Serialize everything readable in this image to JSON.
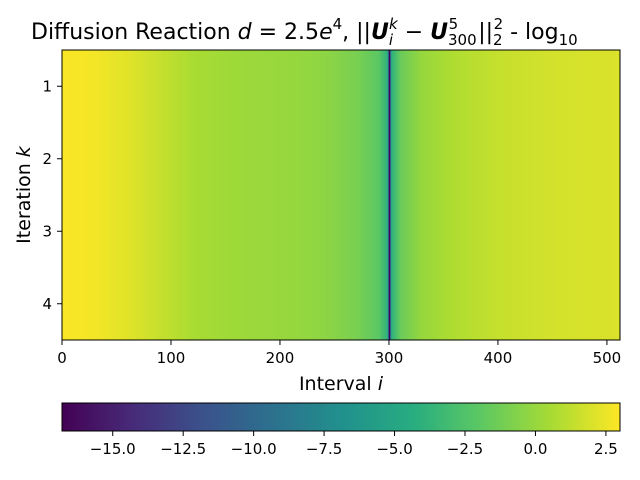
{
  "chart_data": {
    "type": "heatmap",
    "title": "Diffusion Reaction d = 2.5e⁴, ||Uᵢᵏ − U⁵₃₀₀||²₂ - log₁₀",
    "title_parts": {
      "prefix": "Diffusion Reaction ",
      "d_var": "d",
      "equals": " = 2.5",
      "e_var": "e",
      "exp4": "4",
      "comma": ", ||",
      "U1": "U",
      "sub_i": "i",
      "sup_k": "k",
      "minus": " − ",
      "U2": "U",
      "sub_300": "300",
      "sup_5": "5",
      "bars": "||",
      "sub_2": "2",
      "sup_2": "2",
      "suffix": " - log",
      "sub_10": "10"
    },
    "xlabel": "Interval i",
    "xlabel_text": "Interval ",
    "xlabel_var": "i",
    "ylabel": "Iteration k",
    "ylabel_text": "Iteration ",
    "ylabel_var": "k",
    "x_range": [
      0,
      512
    ],
    "y_range": [
      0.5,
      4.5
    ],
    "y_inverted": true,
    "x_ticks": [
      0,
      100,
      200,
      300,
      400,
      500
    ],
    "y_ticks": [
      1,
      2,
      3,
      4
    ],
    "x_tick_labels": [
      "0",
      "100",
      "200",
      "300",
      "400",
      "500"
    ],
    "y_tick_labels": [
      "1",
      "2",
      "3",
      "4"
    ],
    "colormap": "viridis",
    "color_range": [
      -16.8,
      3.0
    ],
    "colorbar_ticks": [
      -15.0,
      -12.5,
      -10.0,
      -7.5,
      -5.0,
      -2.5,
      0.0,
      2.5
    ],
    "colorbar_tick_labels": [
      "−15.0",
      "−12.5",
      "−10.0",
      "−7.5",
      "−5.0",
      "−2.5",
      "0.0",
      "2.5"
    ],
    "colorbar_orientation": "horizontal",
    "rows": 4,
    "profile_note_values_by_interval": {
      "i": [
        0,
        30,
        60,
        90,
        120,
        150,
        180,
        210,
        240,
        270,
        290,
        298,
        300,
        302,
        310,
        330,
        360,
        400,
        450,
        512
      ],
      "value": [
        2.9,
        2.7,
        2.2,
        1.4,
        0.6,
        0.3,
        0.1,
        0.0,
        -0.3,
        -1.0,
        -2.0,
        -4.0,
        -16.8,
        -4.0,
        -1.5,
        0.0,
        0.8,
        1.4,
        1.8,
        2.0
      ]
    }
  }
}
